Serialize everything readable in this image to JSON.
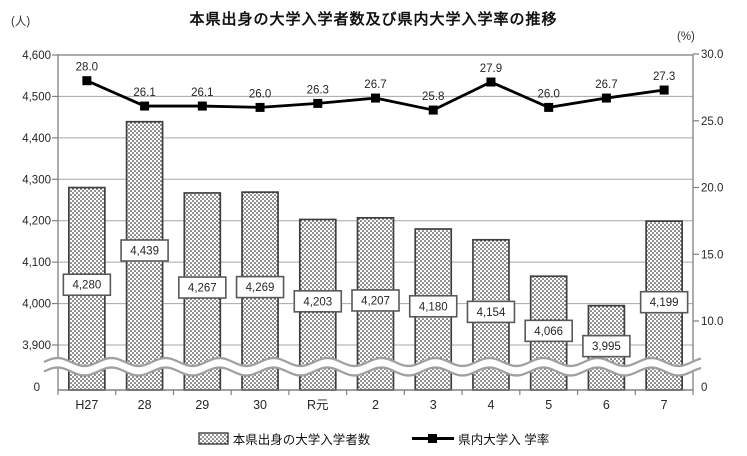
{
  "chart_data": {
    "type": "combo_bar_line",
    "title": "本県出身の大学入学者数及び県内大学入学率の推移",
    "categories": [
      "H27",
      "28",
      "29",
      "30",
      "R元",
      "2",
      "3",
      "4",
      "5",
      "6",
      "7"
    ],
    "series": [
      {
        "name": "本県出身の大学入学者数",
        "type": "bar",
        "axis": "left",
        "values": [
          4280,
          4439,
          4267,
          4269,
          4203,
          4207,
          4180,
          4154,
          4066,
          3995,
          4199
        ],
        "labels": [
          "4,280",
          "4,439",
          "4,267",
          "4,269",
          "4,203",
          "4,207",
          "4,180",
          "4,154",
          "4,066",
          "3,995",
          "4,199"
        ]
      },
      {
        "name": "県内大学入 学率",
        "type": "line",
        "axis": "right",
        "values": [
          28.0,
          26.1,
          26.1,
          26.0,
          26.3,
          26.7,
          25.8,
          27.9,
          26.0,
          26.7,
          27.3
        ],
        "labels": [
          "28.0",
          "26.1",
          "26.1",
          "26.0",
          "26.3",
          "26.7",
          "25.8",
          "27.9",
          "26.0",
          "26.7",
          "27.3"
        ]
      }
    ],
    "left_axis": {
      "unit": "(人)",
      "ticks": [
        4600,
        4500,
        4400,
        4300,
        4200,
        4100,
        4000,
        3900
      ],
      "tick_labels": [
        "4,600",
        "4,500",
        "4,400",
        "4,300",
        "4,200",
        "4,100",
        "4,000",
        "3,900"
      ],
      "zero_label": "0",
      "range_shown": [
        3900,
        4600
      ],
      "axis_break": true
    },
    "right_axis": {
      "unit": "(%)",
      "ticks": [
        30,
        25,
        20,
        15,
        10
      ],
      "tick_labels": [
        "30.0",
        "25.0",
        "20.0",
        "15.0",
        "10.0"
      ],
      "zero_label": "0",
      "range": [
        0,
        30
      ],
      "axis_break": true
    },
    "grid": "horizontal",
    "legend_position": "bottom"
  },
  "colors": {
    "line_series": "#000000",
    "bar_outline": "#404040",
    "gridline": "#a6a6a6",
    "axis": "#808080",
    "break_wave": "#a0a0a0",
    "text": "#262626"
  }
}
